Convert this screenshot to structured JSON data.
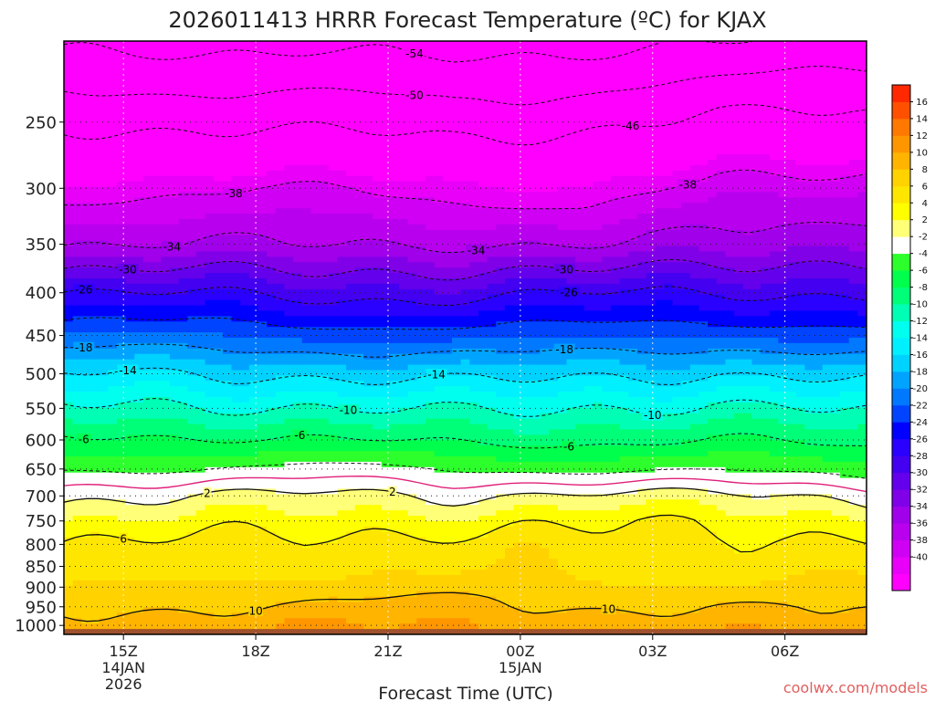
{
  "chart_data": {
    "type": "heatmap",
    "title": "2026011413 HRRR Forecast Temperature (ºC) for KJAX",
    "xlabel": "Forecast Time (UTC)",
    "ylabel": "",
    "credit": "coolwx.com/models",
    "x_range_hours": [
      -1.35,
      16.85
    ],
    "y_range_hpa": [
      1025,
      200
    ],
    "y_ticks": [
      250,
      300,
      350,
      400,
      450,
      500,
      550,
      600,
      650,
      700,
      750,
      800,
      850,
      900,
      950,
      1000
    ],
    "x_ticks": [
      {
        "hour": 0,
        "lines": [
          "15Z",
          "14JAN",
          "2026"
        ]
      },
      {
        "hour": 3,
        "lines": [
          "18Z"
        ]
      },
      {
        "hour": 6,
        "lines": [
          "21Z"
        ]
      },
      {
        "hour": 9,
        "lines": [
          "00Z",
          "15JAN"
        ]
      },
      {
        "hour": 12,
        "lines": [
          "03Z"
        ]
      },
      {
        "hour": 15,
        "lines": [
          "06Z"
        ]
      }
    ],
    "hours": [
      -1.35,
      1.5,
      4.5,
      7.5,
      10.5,
      13.5,
      16.85
    ],
    "profile_pressures": [
      1025,
      1000,
      950,
      900,
      850,
      800,
      750,
      700,
      650,
      600,
      550,
      500,
      450,
      400,
      350,
      300,
      250,
      200
    ],
    "temperature_profiles": [
      [
        12,
        11,
        9,
        7.5,
        6.5,
        6,
        4,
        1.5,
        -2,
        -5.5,
        -9.5,
        -14,
        -20,
        -26,
        -34,
        -39,
        -47,
        -55
      ],
      [
        12,
        11.5,
        10,
        8.5,
        7,
        6.5,
        4.5,
        2,
        -2,
        -5.5,
        -9.5,
        -14,
        -20,
        -26,
        -34,
        -38.5,
        -47,
        -55
      ],
      [
        12,
        12,
        10.5,
        9,
        7.5,
        7,
        5,
        2.5,
        -1.5,
        -6,
        -10,
        -14.5,
        -20.5,
        -27,
        -34,
        -38,
        -47,
        -55
      ],
      [
        12,
        12,
        10.5,
        9,
        7.5,
        7,
        5,
        2,
        -2,
        -6.5,
        -10.5,
        -15,
        -21,
        -27,
        -34,
        -39,
        -48,
        -56
      ],
      [
        12,
        11.5,
        10,
        8.5,
        7.5,
        7,
        5.5,
        2.5,
        -2.5,
        -6.5,
        -10,
        -14.5,
        -20.5,
        -26,
        -34.5,
        -40,
        -47,
        -55
      ],
      [
        12,
        11,
        10,
        8.5,
        7.5,
        7,
        5.5,
        2.5,
        -2.5,
        -6,
        -9.5,
        -14,
        -20,
        -26,
        -33,
        -37,
        -45,
        -54
      ],
      [
        12,
        10.5,
        9.5,
        8,
        7.5,
        6.5,
        4.5,
        1.5,
        -3,
        -7,
        -10.5,
        -15,
        -21,
        -26.5,
        -32,
        -36,
        -45,
        -53
      ]
    ],
    "colorbar": {
      "labels": [
        "16",
        "14",
        "12",
        "10",
        "8",
        "6",
        "4",
        "2",
        "-2",
        "-4",
        "-6",
        "-8",
        "-10",
        "-12",
        "-14",
        "-16",
        "-18",
        "-20",
        "-22",
        "-24",
        "-26",
        "-28",
        "-30",
        "-32",
        "-34",
        "-36",
        "-38",
        "-40"
      ],
      "levels": [
        -42,
        -40,
        -38,
        -36,
        -34,
        -32,
        -30,
        -28,
        -26,
        -24,
        -22,
        -20,
        -18,
        -16,
        -14,
        -12,
        -10,
        -8,
        -6,
        -4,
        -2,
        2,
        4,
        6,
        8,
        10,
        12,
        14,
        16,
        18
      ],
      "colors": [
        "#ff00ff",
        "#e800f8",
        "#d000f4",
        "#b800ee",
        "#a000ea",
        "#8000e8",
        "#6400ec",
        "#4400f0",
        "#2a00ff",
        "#0000ff",
        "#0044ff",
        "#0078ff",
        "#00a4ff",
        "#00d2ff",
        "#00f0ff",
        "#00ffee",
        "#00ffb4",
        "#00ff78",
        "#00ff4c",
        "#2cff2c",
        "#ffffff",
        "#ffff78",
        "#ffff00",
        "#ffe600",
        "#ffd200",
        "#ffb400",
        "#ff9600",
        "#ff7800",
        "#ff5000",
        "#ff2800"
      ]
    },
    "contours_dashed": [
      -54,
      -50,
      -46,
      -38,
      -34,
      -30,
      -26,
      -22,
      -18,
      -14,
      -10,
      -6,
      -2
    ],
    "contours_solid": [
      2,
      6,
      10
    ],
    "freezing_line": 0,
    "contour_labels": [
      {
        "hour": 6.6,
        "value": -54
      },
      {
        "hour": 6.6,
        "value": -50
      },
      {
        "hour": 11.5,
        "value": -46
      },
      {
        "hour": 12.8,
        "value": -38
      },
      {
        "hour": 2.5,
        "value": -38
      },
      {
        "hour": 1.1,
        "value": -34
      },
      {
        "hour": 8,
        "value": -34
      },
      {
        "hour": 0.1,
        "value": -30
      },
      {
        "hour": 10,
        "value": -30
      },
      {
        "hour": -0.9,
        "value": -26
      },
      {
        "hour": 10.1,
        "value": -26
      },
      {
        "hour": -0.9,
        "value": -18
      },
      {
        "hour": 10,
        "value": -18
      },
      {
        "hour": 0.1,
        "value": -14
      },
      {
        "hour": 7.1,
        "value": -14
      },
      {
        "hour": 5.1,
        "value": -10
      },
      {
        "hour": 12,
        "value": -10
      },
      {
        "hour": -0.9,
        "value": -6
      },
      {
        "hour": 4,
        "value": -6
      },
      {
        "hour": 10.1,
        "value": -6
      },
      {
        "hour": 6.1,
        "value": 2
      },
      {
        "hour": 1.9,
        "value": 2
      },
      {
        "hour": 0,
        "value": 6
      },
      {
        "hour": 3,
        "value": 10
      },
      {
        "hour": 11,
        "value": 10
      }
    ],
    "ground_color": "#a0522d"
  }
}
